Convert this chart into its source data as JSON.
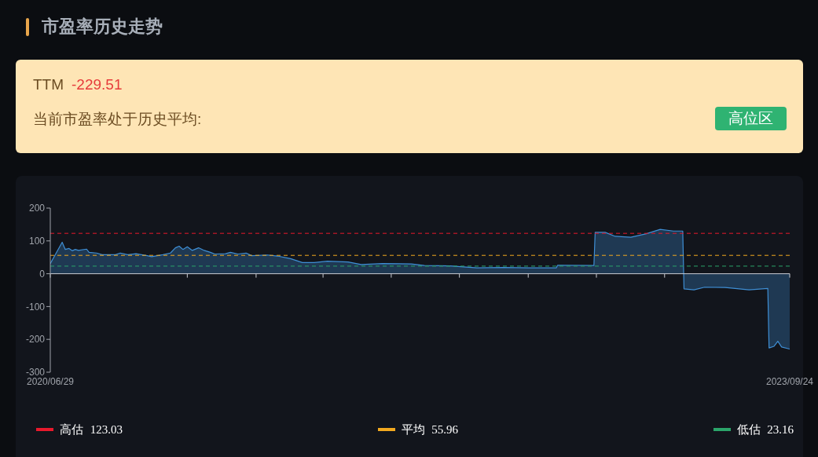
{
  "chart_data": {
    "type": "area",
    "title": "市盈率历史走势",
    "annotations": [
      "TTM",
      "-229.51",
      "当前市盈率处于历史平均:",
      "高位区"
    ],
    "x": [
      "2020-06-29",
      "2020-07-18",
      "2020-07-23",
      "2020-07-29",
      "2020-08-03",
      "2020-08-08",
      "2020-08-13",
      "2020-08-26",
      "2020-08-30",
      "2020-09-11",
      "2020-09-20",
      "2020-10-11",
      "2020-10-19",
      "2020-10-31",
      "2020-11-13",
      "2020-12-01",
      "2020-12-08",
      "2020-12-26",
      "2021-01-07",
      "2021-01-15",
      "2021-01-21",
      "2021-01-27",
      "2021-02-03",
      "2021-02-11",
      "2021-02-21",
      "2021-03-02",
      "2021-03-12",
      "2021-03-19",
      "2021-04-05",
      "2021-04-13",
      "2021-04-25",
      "2021-05-08",
      "2021-05-17",
      "2021-06-11",
      "2021-06-27",
      "2021-07-18",
      "2021-08-06",
      "2021-08-25",
      "2021-09-15",
      "2021-10-18",
      "2021-11-08",
      "2021-12-12",
      "2022-01-27",
      "2022-02-17",
      "2022-03-30",
      "2022-05-12",
      "2022-06-23",
      "2022-08-03",
      "2022-09-16",
      "2022-09-18",
      "2022-11-15",
      "2022-11-17",
      "2022-12-03",
      "2022-12-19",
      "2023-01-13",
      "2023-02-07",
      "2023-03-01",
      "2023-03-22",
      "2023-04-06",
      "2023-04-08",
      "2023-04-24",
      "2023-05-11",
      "2023-06-13",
      "2023-07-21",
      "2023-08-20",
      "2023-08-22",
      "2023-08-30",
      "2023-09-05",
      "2023-09-11",
      "2023-09-24"
    ],
    "values": [
      31,
      96,
      74,
      77,
      70,
      74,
      71,
      75,
      65,
      63,
      58,
      58,
      63,
      58,
      61,
      55,
      52,
      58,
      63,
      79,
      84,
      74,
      82,
      71,
      79,
      71,
      65,
      60,
      61,
      65,
      60,
      63,
      55,
      57,
      54,
      46,
      34,
      34,
      38,
      36,
      28,
      31,
      30,
      25,
      24,
      18,
      19,
      18,
      18,
      26,
      25,
      126,
      126,
      114,
      111,
      122,
      135,
      130,
      130,
      -46,
      -49,
      -41,
      -42,
      -49,
      -45,
      -226,
      -221,
      -206,
      -223,
      -229.51
    ],
    "color": "#3f8fd5",
    "xlim": [
      "2020-06-29",
      "2023-09-24"
    ],
    "xticks": [
      {
        "value": "2020-06-29",
        "label": "2020/06/29"
      },
      {
        "value": "2021-02-03",
        "label": null
      },
      {
        "value": "2021-05-24",
        "label": null
      },
      {
        "value": "2021-09-08",
        "label": null
      },
      {
        "value": "2021-12-26",
        "label": null
      },
      {
        "value": "2022-04-14",
        "label": null
      },
      {
        "value": "2022-08-02",
        "label": null
      },
      {
        "value": "2022-11-19",
        "label": null
      },
      {
        "value": "2023-03-08",
        "label": null
      },
      {
        "value": "2023-09-24",
        "label": "2023/09/24"
      }
    ],
    "ylim": [
      -300,
      200
    ],
    "yticks": [
      -300,
      -200,
      -100,
      0,
      100,
      200
    ],
    "ref_lines": [
      {
        "axis": "y",
        "value": 123.03,
        "label": "高估 123.03",
        "color": "#e8192c",
        "line_style": "dashed"
      },
      {
        "axis": "y",
        "value": 55.96,
        "label": "平均 55.96",
        "color": "#f2a91f",
        "line_style": "dashed"
      },
      {
        "axis": "y",
        "value": 23.16,
        "label": "低估 23.16",
        "color": "#2ba56a",
        "line_style": "dashed"
      }
    ],
    "legend": "bottom"
  }
}
